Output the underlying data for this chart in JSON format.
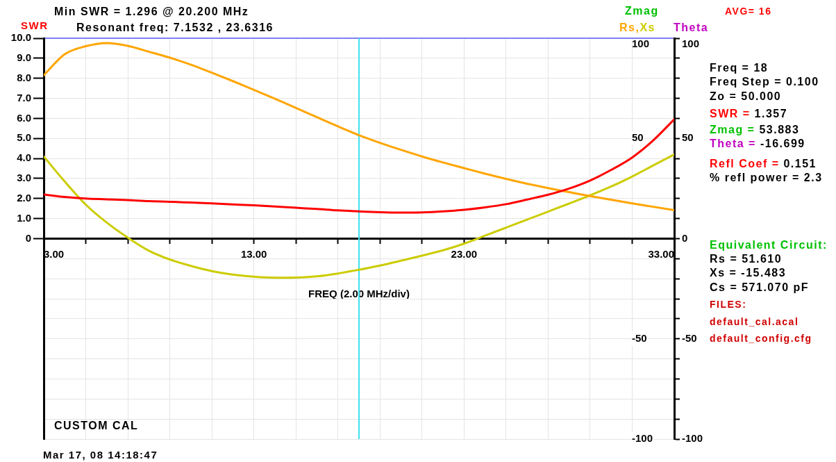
{
  "chart_data": {
    "type": "line",
    "title": "Min SWR = 1.296 @ 20.200 MHz",
    "subtitle": "Resonant freq: 7.1532 , 23.6316",
    "xlabel": "FREQ (2.00 MHz/div)",
    "ylabel": "SWR",
    "y2label": "Rs,Xs",
    "y3label": "Theta",
    "x": [
      3,
      4,
      5,
      6,
      7,
      8,
      9,
      10,
      11,
      12,
      13,
      14,
      15,
      16,
      17,
      18,
      19,
      20,
      21,
      22,
      23,
      24,
      25,
      26,
      27,
      28,
      29,
      30,
      31,
      32,
      33
    ],
    "series": [
      {
        "color": "#ff0000",
        "values": [
          2.2,
          2.08,
          2.0,
          1.96,
          1.92,
          1.87,
          1.84,
          1.8,
          1.76,
          1.71,
          1.66,
          1.6,
          1.54,
          1.48,
          1.41,
          1.36,
          1.32,
          1.3,
          1.31,
          1.36,
          1.44,
          1.56,
          1.72,
          1.95,
          2.19,
          2.5,
          2.9,
          3.43,
          4.05,
          4.9,
          5.95
        ]
      },
      {
        "color": "#ffa500",
        "axis": "y2",
        "values": [
          81.5,
          92,
          96,
          97.6,
          96.2,
          93.3,
          90.3,
          86.8,
          82.8,
          78.6,
          74.2,
          69.8,
          65.2,
          60.6,
          56,
          51.6,
          47.8,
          44.3,
          41,
          38,
          35.2,
          32.4,
          29.8,
          27.4,
          25.2,
          23.2,
          21.2,
          19.4,
          17.6,
          15.9,
          14.2
        ]
      },
      {
        "color": "#cccc00",
        "axis": "y2",
        "values": [
          41,
          28.5,
          17,
          8,
          0.5,
          -6,
          -10.4,
          -13.6,
          -16.2,
          -17.9,
          -19,
          -19.5,
          -19.4,
          -18.8,
          -17.4,
          -15.5,
          -13.4,
          -11,
          -8.5,
          -5.8,
          -2.5,
          1.5,
          5.5,
          9.5,
          13.5,
          17.5,
          21.6,
          26,
          31,
          36.5,
          42
        ]
      }
    ],
    "xlim": [
      3,
      33
    ],
    "xticks": [
      {
        "value": 3,
        "label": "3.00"
      },
      {
        "value": 5,
        "label": null
      },
      {
        "value": 7,
        "label": null
      },
      {
        "value": 9,
        "label": null
      },
      {
        "value": 11,
        "label": null
      },
      {
        "value": 13,
        "label": "13.00"
      },
      {
        "value": 15,
        "label": null
      },
      {
        "value": 17,
        "label": null
      },
      {
        "value": 19,
        "label": null
      },
      {
        "value": 21,
        "label": null
      },
      {
        "value": 23,
        "label": "23.00"
      },
      {
        "value": 25,
        "label": null
      },
      {
        "value": 27,
        "label": null
      },
      {
        "value": 29,
        "label": null
      },
      {
        "value": 31,
        "label": null
      },
      {
        "value": 33,
        "label": "33.00"
      }
    ],
    "ylim": [
      -10,
      10
    ],
    "yticks": [
      0,
      {
        "value": 1,
        "label": "1.0"
      },
      {
        "value": 2,
        "label": "2.0"
      },
      {
        "value": 3,
        "label": "3.0"
      },
      {
        "value": 4,
        "label": "4.0"
      },
      {
        "value": 5,
        "label": "5.0"
      },
      {
        "value": 6,
        "label": "6.0"
      },
      {
        "value": 7,
        "label": "7.0"
      },
      {
        "value": 8,
        "label": "8.0"
      },
      {
        "value": 9,
        "label": "9.0"
      },
      {
        "value": 10,
        "label": "10.0"
      }
    ],
    "y2lim": [
      -100,
      100
    ],
    "y2ticks": [
      -100,
      {
        "value": -90,
        "label": null
      },
      {
        "value": -80,
        "label": null
      },
      {
        "value": -70,
        "label": null
      },
      {
        "value": -60,
        "label": null
      },
      -50,
      {
        "value": -40,
        "label": null
      },
      {
        "value": -30,
        "label": null
      },
      {
        "value": -20,
        "label": null
      },
      {
        "value": -10,
        "label": null
      },
      {
        "value": 0,
        "label": null
      },
      {
        "value": 10,
        "label": null
      },
      {
        "value": 20,
        "label": null
      },
      {
        "value": 30,
        "label": null
      },
      {
        "value": 40,
        "label": null
      },
      50,
      {
        "value": 60,
        "label": null
      },
      {
        "value": 70,
        "label": null
      },
      {
        "value": 80,
        "label": null
      },
      {
        "value": 90,
        "label": null
      },
      100
    ],
    "y3lim": [
      -100,
      100
    ],
    "y3ticks": [
      -100,
      {
        "value": -90,
        "label": null
      },
      {
        "value": -80,
        "label": null
      },
      {
        "value": -70,
        "label": null
      },
      {
        "value": -60,
        "label": null
      },
      -50,
      {
        "value": -40,
        "label": null
      },
      {
        "value": -30,
        "label": null
      },
      {
        "value": -20,
        "label": null
      },
      {
        "value": -10,
        "label": null
      },
      0,
      {
        "value": 10,
        "label": null
      },
      {
        "value": 20,
        "label": null
      },
      {
        "value": 30,
        "label": null
      },
      {
        "value": 40,
        "label": null
      },
      50,
      {
        "value": 60,
        "label": null
      },
      {
        "value": 70,
        "label": null
      },
      {
        "value": 80,
        "label": null
      },
      {
        "value": 90,
        "label": null
      },
      100
    ],
    "grid": true,
    "marker": "none",
    "line_style": "solid",
    "ref_lines": [
      {
        "axis": "x",
        "value": 18,
        "color": "#40e0f0"
      }
    ],
    "annotations": [
      "AVG= 16",
      "Zmag",
      "Freq = 18",
      "Freq Step = 0.100",
      "Zo = 50.000",
      "SWR = 1.357",
      "Zmag = 53.883",
      "Theta = -16.699",
      "Refl Coef = 0.151",
      "% refl power = 2.3",
      "Equivalent Circuit:",
      "Rs = 51.610",
      "Xs = -15.483",
      "Cs = 571.070 pF",
      "FILES:",
      "default_cal.acal",
      "default_config.cfg",
      "CUSTOM CAL",
      "Mar 17, 08 14:18:47"
    ]
  }
}
